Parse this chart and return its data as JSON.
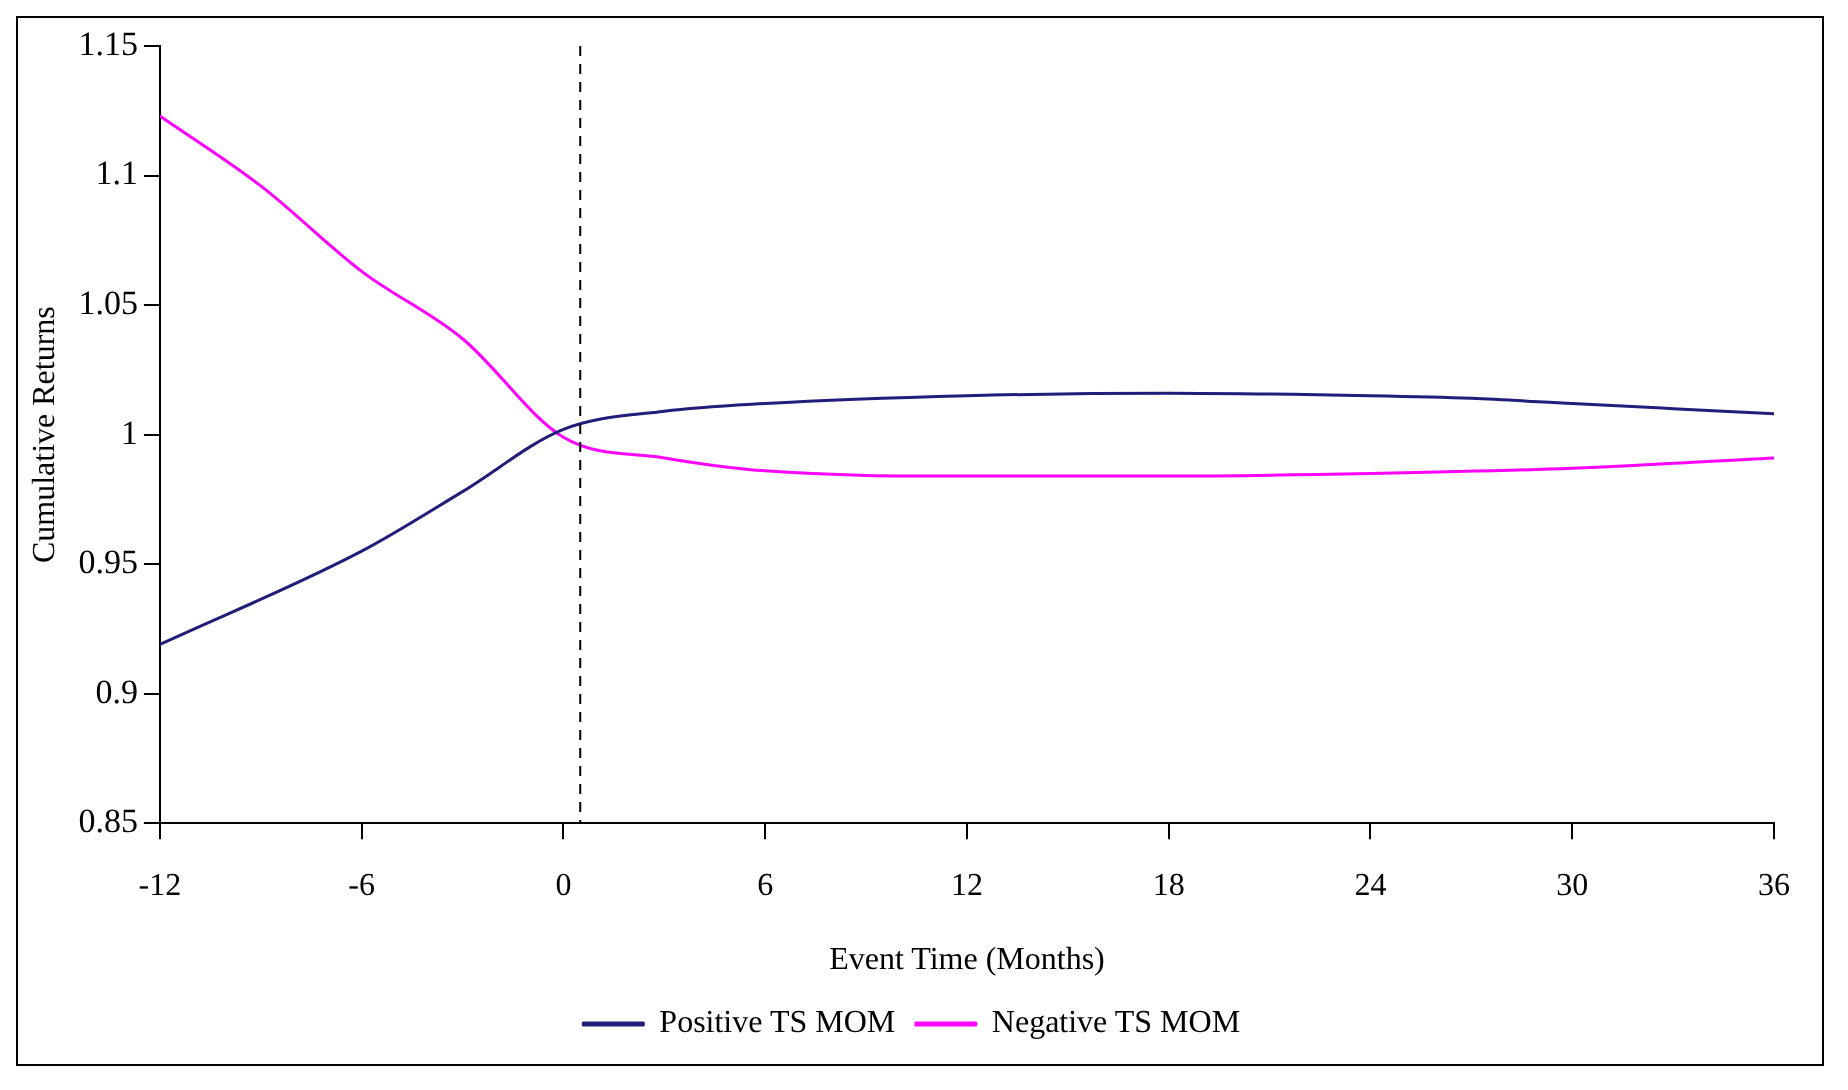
{
  "chart_data": {
    "type": "line",
    "xlabel": "Event Time (Months)",
    "ylabel": "Cumulative Returns",
    "xlim": [
      -12,
      36
    ],
    "xticks": [
      -12,
      -6,
      0,
      6,
      12,
      18,
      24,
      30,
      36
    ],
    "ylim": [
      0.85,
      1.15
    ],
    "yticks": [
      0.85,
      0.9,
      0.95,
      1,
      1.05,
      1.1,
      1.15
    ],
    "grid": false,
    "legend": "bottom",
    "marker": "none",
    "line_style": "solid",
    "ref_lines": [
      {
        "axis": "x",
        "value": 0.5,
        "color": "#000000",
        "line_style": "dashed"
      }
    ],
    "series": [
      {
        "name": "Positive TS MOM",
        "color": "#1f1f7a",
        "x": [
          -12,
          -6,
          -3,
          0,
          3,
          6,
          12,
          18,
          24,
          27,
          30,
          33,
          36
        ],
        "values": [
          0.919,
          0.955,
          0.978,
          1.002,
          1.009,
          1.012,
          1.015,
          1.016,
          1.015,
          1.014,
          1.012,
          1.01,
          1.008
        ]
      },
      {
        "name": "Negative TS MOM",
        "color": "#ff00ff",
        "x": [
          -12,
          -9,
          -6,
          -3,
          0,
          3,
          6,
          12,
          18,
          24,
          30,
          36
        ],
        "values": [
          1.123,
          1.096,
          1.063,
          1.037,
          0.999,
          0.991,
          0.986,
          0.984,
          0.984,
          0.985,
          0.987,
          0.991
        ]
      }
    ]
  }
}
